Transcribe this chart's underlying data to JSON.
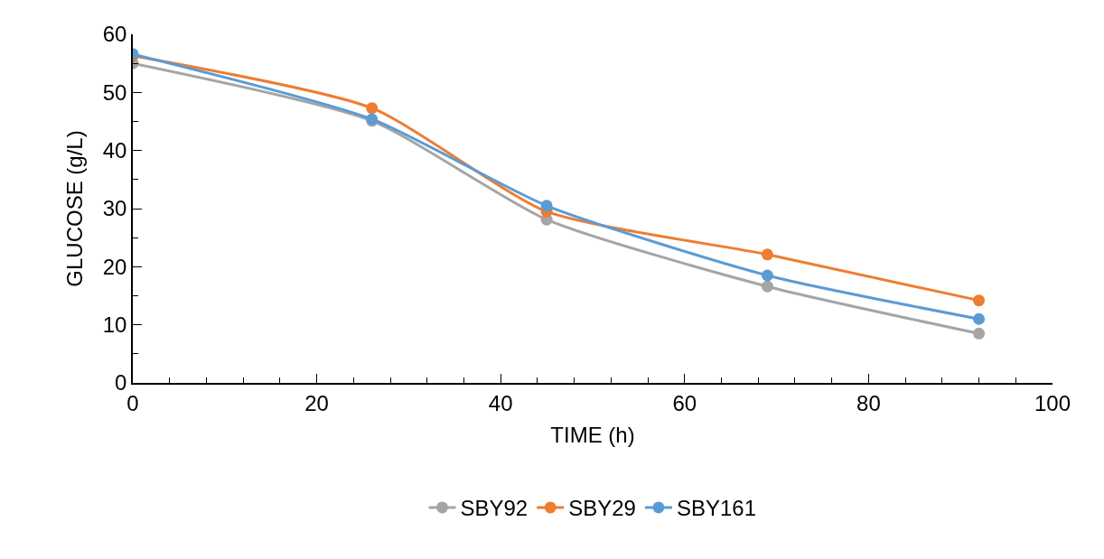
{
  "chart_data": {
    "type": "line",
    "xlabel": "TIME (h)",
    "ylabel": "GLUCOSE (g/L)",
    "x": [
      0,
      26,
      45,
      69,
      92
    ],
    "series": [
      {
        "name": "SBY92",
        "color": "#a5a5a5",
        "values": [
          55.0,
          45.1,
          28.1,
          16.6,
          8.5
        ]
      },
      {
        "name": "SBY29",
        "color": "#ed7d31",
        "values": [
          56.3,
          47.3,
          29.5,
          22.1,
          14.2
        ]
      },
      {
        "name": "SBY161",
        "color": "#5b9bd5",
        "values": [
          56.6,
          45.4,
          30.5,
          18.5,
          11.0
        ]
      }
    ],
    "xlim": [
      0,
      100
    ],
    "xticks": [
      0,
      20,
      40,
      60,
      80,
      100
    ],
    "ylim": [
      0,
      60
    ],
    "yticks": [
      0,
      10,
      20,
      30,
      40,
      50,
      60
    ],
    "legend": "bottom",
    "marker": "circle",
    "line_style": "solid"
  }
}
